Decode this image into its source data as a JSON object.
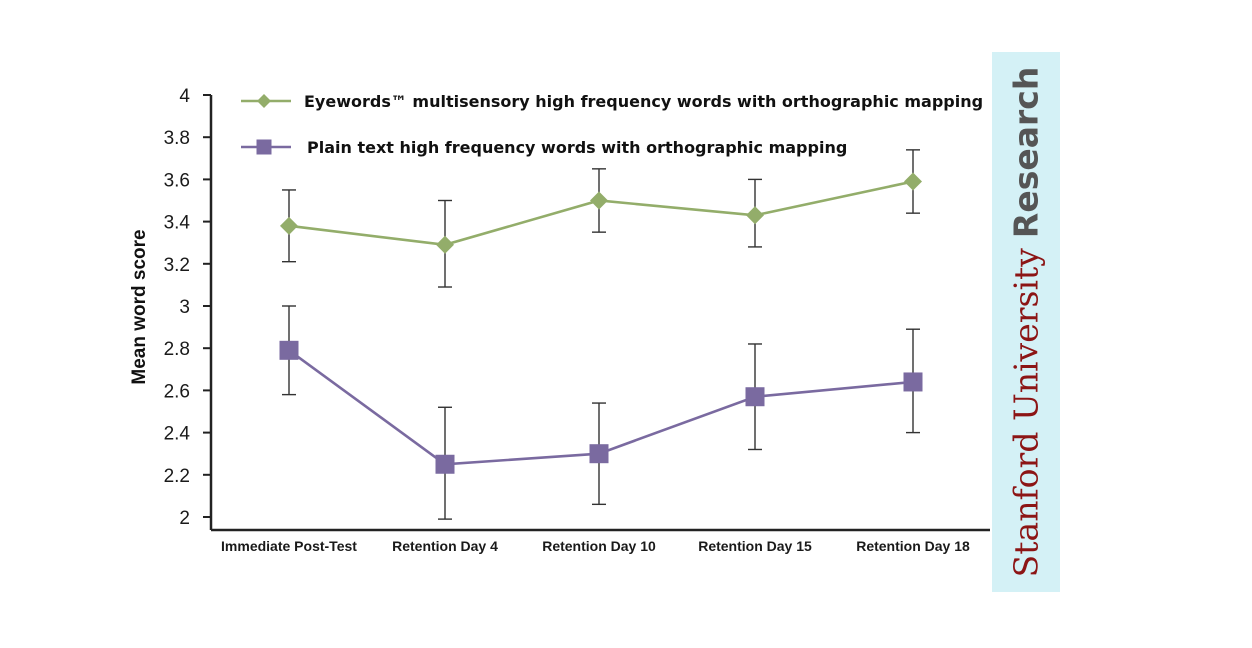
{
  "chart_data": {
    "type": "line",
    "ylabel": "Mean word score",
    "xlabel": "",
    "ylim": [
      2,
      4
    ],
    "yticks": [
      "2",
      "2.2",
      "2.4",
      "2.6",
      "2.8",
      "3",
      "3.2",
      "3.4",
      "3.6",
      "3.8",
      "4"
    ],
    "categories": [
      "Immediate Post-Test",
      "Retention Day 4",
      "Retention Day 10",
      "Retention Day 15",
      "Retention Day 18"
    ],
    "series": [
      {
        "name": "Eyewords™ multisensory high frequency words with orthographic mapping",
        "color": "#93ad6a",
        "marker": "diamond",
        "values": [
          3.38,
          3.29,
          3.5,
          3.43,
          3.59
        ],
        "err_low": [
          3.21,
          3.09,
          3.35,
          3.28,
          3.44
        ],
        "err_high": [
          3.55,
          3.5,
          3.65,
          3.6,
          3.74
        ]
      },
      {
        "name": "Plain text high frequency words with orthographic mapping",
        "color": "#7a6aa0",
        "marker": "square",
        "values": [
          2.79,
          2.25,
          2.3,
          2.57,
          2.64
        ],
        "err_low": [
          2.58,
          1.99,
          2.06,
          2.32,
          2.4
        ],
        "err_high": [
          3.0,
          2.52,
          2.54,
          2.82,
          2.89
        ]
      }
    ]
  },
  "badge": {
    "main": "Stanford University",
    "sub": "Research",
    "background": "#d4f1f6",
    "main_color": "#8c1515"
  }
}
